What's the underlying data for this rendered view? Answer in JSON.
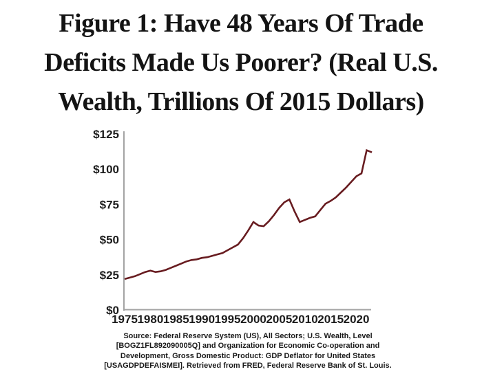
{
  "title": {
    "lines": [
      "Figure 1: Have 48 Years Of Trade",
      "Deficits Made Us Poorer? (Real U.S.",
      "Wealth, Trillions Of 2015 Dollars)"
    ]
  },
  "chart_data": {
    "type": "line",
    "title": "Figure 1: Have 48 Years Of Trade Deficits Made Us Poorer? (Real U.S. Wealth, Trillions Of 2015 Dollars)",
    "xlabel": "",
    "ylabel": "",
    "x": [
      1975,
      1976,
      1977,
      1978,
      1979,
      1980,
      1981,
      1982,
      1983,
      1984,
      1985,
      1986,
      1987,
      1988,
      1989,
      1990,
      1991,
      1992,
      1993,
      1994,
      1995,
      1996,
      1997,
      1998,
      1999,
      2000,
      2001,
      2002,
      2003,
      2004,
      2005,
      2006,
      2007,
      2008,
      2009,
      2010,
      2011,
      2012,
      2013,
      2014,
      2015,
      2016,
      2017,
      2018,
      2019,
      2020,
      2021,
      2022,
      2023
    ],
    "series": [
      {
        "name": "Real U.S. Wealth (trillions of 2015 dollars)",
        "values": [
          22,
          23,
          24,
          25.5,
          27,
          28,
          27,
          27.5,
          28.5,
          30,
          31.5,
          33,
          34.5,
          35.5,
          36,
          37,
          37.5,
          38.5,
          39.5,
          40.5,
          42.5,
          44.5,
          46.5,
          51,
          56.5,
          62.5,
          60,
          59.5,
          63,
          67.5,
          72.5,
          76.5,
          78.5,
          70,
          62.5,
          64,
          65.5,
          66.5,
          71,
          75.5,
          77.5,
          80,
          83.5,
          87,
          91,
          95,
          97,
          113.5,
          112
        ]
      }
    ],
    "xticks": [
      1975,
      1980,
      1985,
      1990,
      1995,
      2000,
      2005,
      2010,
      2015,
      2020
    ],
    "ytick_values": [
      0,
      25,
      50,
      75,
      100,
      125
    ],
    "ytick_labels": [
      "$0",
      "$25",
      "$50",
      "$75",
      "$100",
      "$125"
    ],
    "xlim": [
      1975,
      2023
    ],
    "ylim": [
      0,
      125
    ],
    "grid": false,
    "legend": "none",
    "line_color": "#681c20",
    "axis_color": "#a3a3a3",
    "text_color": "#1c1c1c"
  },
  "source": {
    "lines": [
      "Source: Federal Reserve System (US), All Sectors; U.S. Wealth, Level",
      "[BOGZ1FL892090005Q] and Organization for Economic Co-operation and",
      "Development, Gross Domestic Product: GDP Deflator for United States",
      "[USAGDPDEFAISMEI]. Retrieved from FRED, Federal Reserve Bank of St. Louis."
    ]
  }
}
